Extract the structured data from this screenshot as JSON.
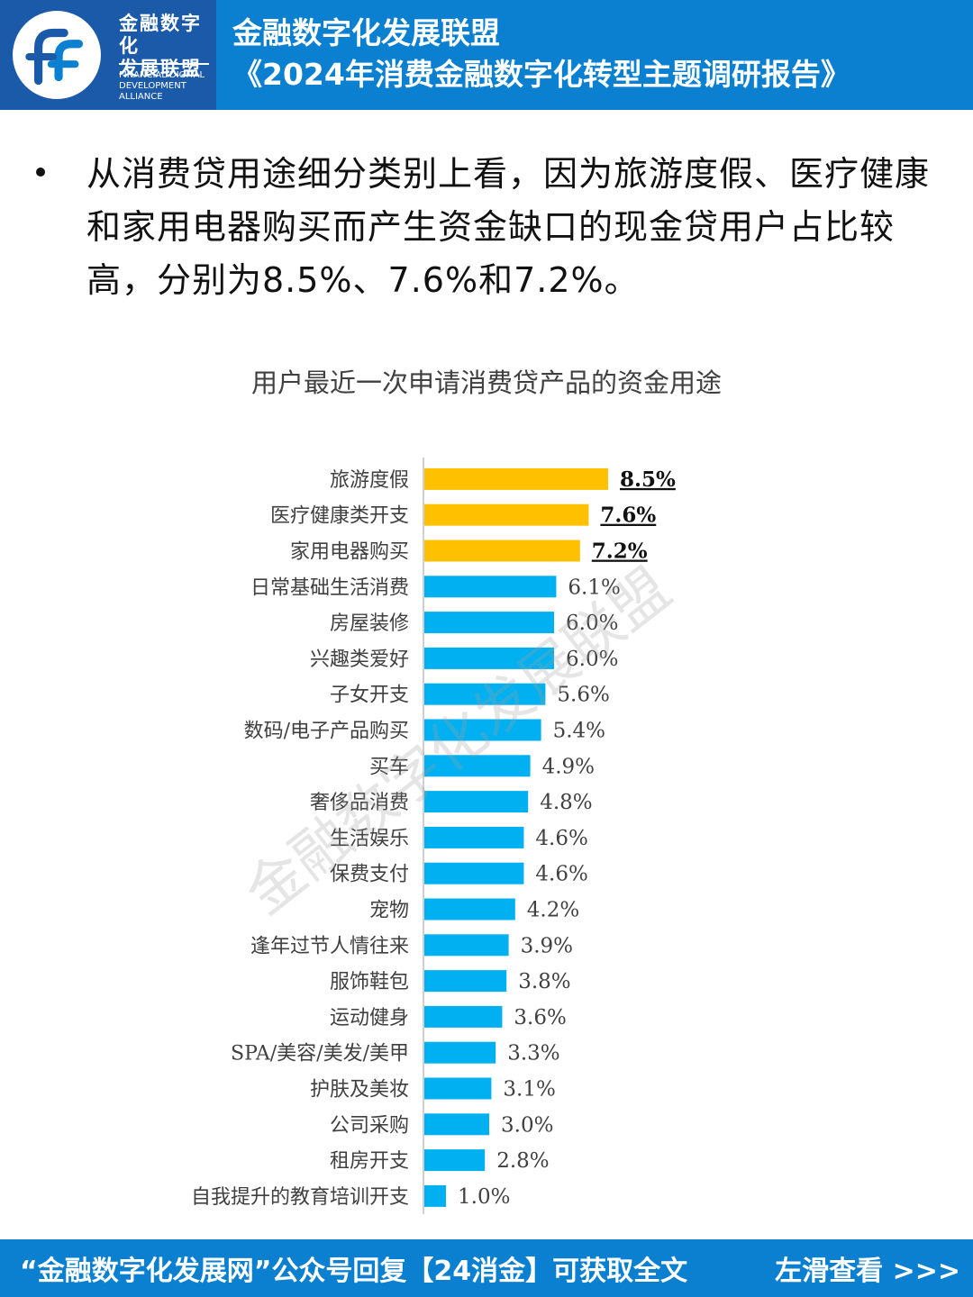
{
  "header": {
    "logo_cn_line1": "金融数字化",
    "logo_cn_line2": "发展联盟",
    "logo_en_line1": "FINANCIAL DIGITAL",
    "logo_en_line2": "DEVELOPMENT ALLIANCE",
    "title_line1": "金融数字化发展联盟",
    "title_line2": "《2024年消费金融数字化转型主题调研报告》"
  },
  "bullet": {
    "text": "从消费贷用途细分类别上看，因为旅游度假、医疗健康和家用电器购买而产生资金缺口的现金贷用户占比较高，分别为8.5%、7.6%和7.2%。"
  },
  "watermark": "金融数字化发展联盟",
  "colors": {
    "header_bg": "#0b7fd0",
    "highlight_bar": "#ffc000",
    "normal_bar": "#00b0f0"
  },
  "chart_data": {
    "type": "bar",
    "orientation": "horizontal",
    "title": "用户最近一次申请消费贷产品的资金用途",
    "unit": "%",
    "categories": [
      "旅游度假",
      "医疗健康类开支",
      "家用电器购买",
      "日常基础生活消费",
      "房屋装修",
      "兴趣类爱好",
      "子女开支",
      "数码/电子产品购买",
      "买车",
      "奢侈品消费",
      "生活娱乐",
      "保费支付",
      "宠物",
      "逢年过节人情往来",
      "服饰鞋包",
      "运动健身",
      "SPA/美容/美发/美甲",
      "护肤及美妆",
      "公司采购",
      "租房开支",
      "自我提升的教育培训开支"
    ],
    "values": [
      8.5,
      7.6,
      7.2,
      6.1,
      6.0,
      6.0,
      5.6,
      5.4,
      4.9,
      4.8,
      4.6,
      4.6,
      4.2,
      3.9,
      3.8,
      3.6,
      3.3,
      3.1,
      3.0,
      2.8,
      1.0
    ],
    "labels": [
      "8.5%",
      "7.6%",
      "7.2%",
      "6.1%",
      "6.0%",
      "6.0%",
      "5.6%",
      "5.4%",
      "4.9%",
      "4.8%",
      "4.6%",
      "4.6%",
      "4.2%",
      "3.9%",
      "3.8%",
      "3.6%",
      "3.3%",
      "3.1%",
      "3.0%",
      "2.8%",
      "1.0%"
    ],
    "highlighted": [
      0,
      1,
      2
    ]
  },
  "footer": {
    "left_text": "“金融数字化发展网”公众号回复【24消金】可获取全文",
    "right_text": "左滑查看 >>>"
  }
}
